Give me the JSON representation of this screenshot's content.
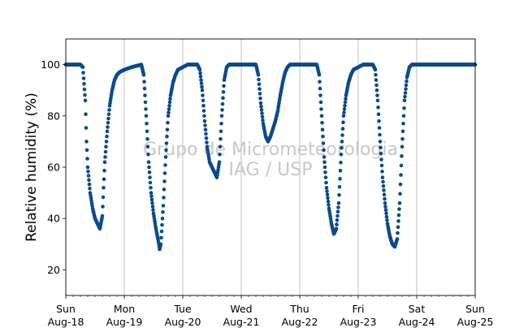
{
  "chart_data": {
    "type": "scatter",
    "title": "",
    "xlabel": "",
    "ylabel": "Relative humidity (%)",
    "watermark": [
      "Grupo de Micrometeorologia",
      "IAG / USP"
    ],
    "xlim": [
      "2019-08-18T00:00",
      "2019-08-25T00:00"
    ],
    "ylim": [
      10,
      110
    ],
    "yticks": [
      20,
      40,
      60,
      80,
      100
    ],
    "xticks": [
      {
        "day": "Sun",
        "date": "Aug-18"
      },
      {
        "day": "Mon",
        "date": "Aug-19"
      },
      {
        "day": "Tue",
        "date": "Aug-20"
      },
      {
        "day": "Wed",
        "date": "Aug-21"
      },
      {
        "day": "Thu",
        "date": "Aug-22"
      },
      {
        "day": "Fri",
        "date": "Aug-23"
      },
      {
        "day": "Sat",
        "date": "Aug-24"
      },
      {
        "day": "Sun",
        "date": "Aug-25"
      }
    ],
    "grid": "vertical",
    "marker_color": "#0b4a8b",
    "series": [
      {
        "points": [
          [
            "2019-08-18T00:00",
            100
          ],
          [
            "2019-08-18T06:00",
            100
          ],
          [
            "2019-08-18T07:00",
            99
          ],
          [
            "2019-08-18T08:00",
            86
          ],
          [
            "2019-08-18T08:30",
            70
          ],
          [
            "2019-08-18T09:00",
            60
          ],
          [
            "2019-08-18T10:00",
            50
          ],
          [
            "2019-08-18T11:00",
            44
          ],
          [
            "2019-08-18T12:00",
            40
          ],
          [
            "2019-08-18T13:00",
            38
          ],
          [
            "2019-08-18T14:00",
            36
          ],
          [
            "2019-08-18T15:00",
            41
          ],
          [
            "2019-08-18T15:30",
            52
          ],
          [
            "2019-08-18T16:00",
            62
          ],
          [
            "2019-08-18T17:00",
            74
          ],
          [
            "2019-08-18T18:00",
            84
          ],
          [
            "2019-08-18T19:00",
            90
          ],
          [
            "2019-08-18T20:00",
            94
          ],
          [
            "2019-08-18T21:00",
            96
          ],
          [
            "2019-08-18T22:00",
            97
          ],
          [
            "2019-08-19T00:00",
            98
          ],
          [
            "2019-08-19T03:00",
            99
          ],
          [
            "2019-08-19T07:00",
            100
          ],
          [
            "2019-08-19T08:00",
            96
          ],
          [
            "2019-08-19T09:00",
            80
          ],
          [
            "2019-08-19T10:00",
            62
          ],
          [
            "2019-08-19T11:00",
            50
          ],
          [
            "2019-08-19T12:00",
            42
          ],
          [
            "2019-08-19T13:00",
            36
          ],
          [
            "2019-08-19T14:00",
            31
          ],
          [
            "2019-08-19T14:30",
            28
          ],
          [
            "2019-08-19T15:00",
            30
          ],
          [
            "2019-08-19T16:00",
            45
          ],
          [
            "2019-08-19T17:00",
            64
          ],
          [
            "2019-08-19T18:00",
            80
          ],
          [
            "2019-08-19T19:00",
            88
          ],
          [
            "2019-08-19T20:00",
            93
          ],
          [
            "2019-08-19T21:00",
            96
          ],
          [
            "2019-08-19T22:00",
            98
          ],
          [
            "2019-08-20T00:00",
            99
          ],
          [
            "2019-08-20T02:00",
            100
          ],
          [
            "2019-08-20T06:00",
            100
          ],
          [
            "2019-08-20T07:00",
            98
          ],
          [
            "2019-08-20T08:00",
            90
          ],
          [
            "2019-08-20T09:00",
            78
          ],
          [
            "2019-08-20T10:00",
            68
          ],
          [
            "2019-08-20T11:00",
            62
          ],
          [
            "2019-08-20T12:00",
            60
          ],
          [
            "2019-08-20T13:00",
            58
          ],
          [
            "2019-08-20T14:00",
            56
          ],
          [
            "2019-08-20T15:00",
            62
          ],
          [
            "2019-08-20T16:00",
            80
          ],
          [
            "2019-08-20T17:00",
            94
          ],
          [
            "2019-08-20T18:00",
            99
          ],
          [
            "2019-08-20T19:00",
            100
          ],
          [
            "2019-08-21T00:00",
            100
          ],
          [
            "2019-08-21T06:00",
            100
          ],
          [
            "2019-08-21T07:00",
            96
          ],
          [
            "2019-08-21T08:00",
            85
          ],
          [
            "2019-08-21T09:00",
            77
          ],
          [
            "2019-08-21T10:00",
            72
          ],
          [
            "2019-08-21T11:00",
            70
          ],
          [
            "2019-08-21T12:00",
            72
          ],
          [
            "2019-08-21T13:00",
            75
          ],
          [
            "2019-08-21T14:00",
            78
          ],
          [
            "2019-08-21T15:00",
            82
          ],
          [
            "2019-08-21T16:00",
            88
          ],
          [
            "2019-08-21T17:00",
            93
          ],
          [
            "2019-08-21T18:00",
            97
          ],
          [
            "2019-08-21T19:00",
            99
          ],
          [
            "2019-08-21T20:00",
            100
          ],
          [
            "2019-08-22T00:00",
            100
          ],
          [
            "2019-08-22T07:00",
            100
          ],
          [
            "2019-08-22T08:00",
            96
          ],
          [
            "2019-08-22T09:00",
            80
          ],
          [
            "2019-08-22T10:00",
            64
          ],
          [
            "2019-08-22T11:00",
            52
          ],
          [
            "2019-08-22T12:00",
            44
          ],
          [
            "2019-08-22T13:00",
            38
          ],
          [
            "2019-08-22T14:00",
            34
          ],
          [
            "2019-08-22T15:00",
            36
          ],
          [
            "2019-08-22T16:00",
            46
          ],
          [
            "2019-08-22T17:00",
            65
          ],
          [
            "2019-08-22T18:00",
            80
          ],
          [
            "2019-08-22T19:00",
            88
          ],
          [
            "2019-08-22T20:00",
            93
          ],
          [
            "2019-08-22T21:00",
            96
          ],
          [
            "2019-08-22T22:00",
            98
          ],
          [
            "2019-08-23T00:00",
            99
          ],
          [
            "2019-08-23T02:00",
            100
          ],
          [
            "2019-08-23T06:00",
            100
          ],
          [
            "2019-08-23T07:00",
            98
          ],
          [
            "2019-08-23T08:00",
            86
          ],
          [
            "2019-08-23T09:00",
            70
          ],
          [
            "2019-08-23T10:00",
            56
          ],
          [
            "2019-08-23T11:00",
            46
          ],
          [
            "2019-08-23T12:00",
            38
          ],
          [
            "2019-08-23T13:00",
            33
          ],
          [
            "2019-08-23T14:00",
            30
          ],
          [
            "2019-08-23T15:00",
            29
          ],
          [
            "2019-08-23T16:00",
            32
          ],
          [
            "2019-08-23T17:00",
            46
          ],
          [
            "2019-08-23T18:00",
            68
          ],
          [
            "2019-08-23T19:00",
            86
          ],
          [
            "2019-08-23T20:00",
            95
          ],
          [
            "2019-08-23T21:00",
            99
          ],
          [
            "2019-08-23T22:00",
            100
          ],
          [
            "2019-08-24T00:00",
            100
          ],
          [
            "2019-08-25T00:00",
            100
          ]
        ]
      }
    ]
  }
}
